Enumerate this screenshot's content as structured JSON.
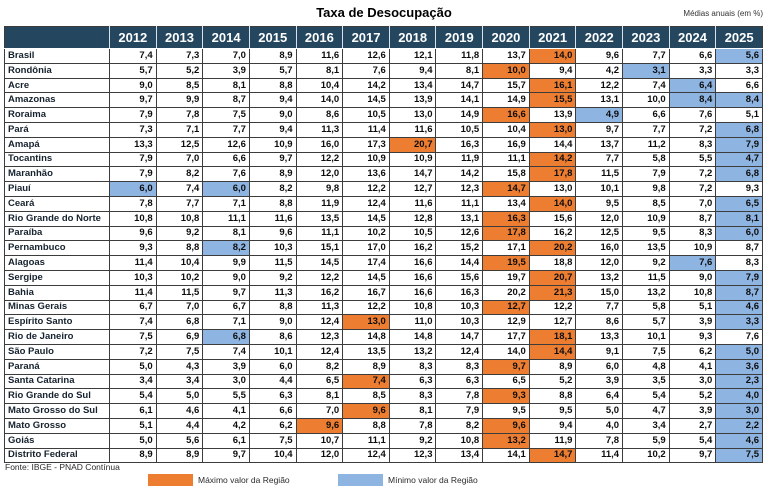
{
  "title": "Taxa de Desocupação",
  "subtitle": "Médias anuais (em %)",
  "source": "Fonte: IBGE - PNAD Contínua",
  "legend": {
    "max_label": "Máximo valor da Região",
    "min_label": "Mínimo valor da Região",
    "max_color": "#ED7D31",
    "min_color": "#8EB4E2"
  },
  "colors": {
    "header_bg": "#24465F",
    "header_text": "#FFFFFF",
    "max_fill": "#ED7D31",
    "min_fill": "#8EB4E2",
    "grid_line": "#3C3C3C"
  },
  "chart_data": {
    "type": "table",
    "title": "Taxa de Desocupação",
    "unit": "Médias anuais (em %)",
    "highlight_legend": {
      "orange": "Máximo valor da Região",
      "blue": "Mínimo valor da Região"
    },
    "years": [
      "2012",
      "2013",
      "2014",
      "2015",
      "2016",
      "2017",
      "2018",
      "2019",
      "2020",
      "2021",
      "2022",
      "2023",
      "2024",
      "2025"
    ],
    "rows": [
      {
        "name": "Brasil",
        "values": [
          "7,4",
          "7,3",
          "7,0",
          "8,9",
          "11,6",
          "12,6",
          "12,1",
          "11,8",
          "13,7",
          "14,0",
          "9,6",
          "7,7",
          "6,6",
          "5,6"
        ],
        "max": [
          9
        ],
        "min": [
          13
        ]
      },
      {
        "name": "Rondônia",
        "values": [
          "5,7",
          "5,2",
          "3,9",
          "5,7",
          "8,1",
          "7,6",
          "9,4",
          "8,1",
          "10,0",
          "9,4",
          "4,2",
          "3,1",
          "3,3",
          "3,3"
        ],
        "max": [
          8
        ],
        "min": [
          11
        ]
      },
      {
        "name": "Acre",
        "values": [
          "9,0",
          "8,5",
          "8,1",
          "8,8",
          "10,4",
          "14,2",
          "13,4",
          "14,7",
          "15,7",
          "16,1",
          "12,2",
          "7,4",
          "6,4",
          "6,6"
        ],
        "max": [
          9
        ],
        "min": [
          12
        ]
      },
      {
        "name": "Amazonas",
        "values": [
          "9,7",
          "9,9",
          "8,7",
          "9,4",
          "14,0",
          "14,5",
          "13,9",
          "14,1",
          "14,9",
          "15,5",
          "13,1",
          "10,0",
          "8,4",
          "8,4"
        ],
        "max": [
          9
        ],
        "min": [
          12,
          13
        ]
      },
      {
        "name": "Roraima",
        "values": [
          "7,9",
          "7,8",
          "7,5",
          "9,0",
          "8,6",
          "10,5",
          "13,0",
          "14,9",
          "16,6",
          "13,9",
          "4,9",
          "6,6",
          "7,6",
          "5,1"
        ],
        "max": [
          8
        ],
        "min": [
          10
        ]
      },
      {
        "name": "Pará",
        "values": [
          "7,3",
          "7,1",
          "7,7",
          "9,4",
          "11,3",
          "11,4",
          "11,6",
          "10,5",
          "10,4",
          "13,0",
          "9,7",
          "7,7",
          "7,2",
          "6,8"
        ],
        "max": [
          9
        ],
        "min": [
          13
        ]
      },
      {
        "name": "Amapá",
        "values": [
          "13,3",
          "12,5",
          "12,6",
          "10,9",
          "16,0",
          "17,3",
          "20,7",
          "16,3",
          "16,9",
          "14,4",
          "13,7",
          "11,2",
          "8,3",
          "7,9"
        ],
        "max": [
          6
        ],
        "min": [
          13
        ]
      },
      {
        "name": "Tocantins",
        "values": [
          "7,9",
          "7,0",
          "6,6",
          "9,7",
          "12,2",
          "10,9",
          "10,9",
          "11,9",
          "11,1",
          "14,2",
          "7,7",
          "5,8",
          "5,5",
          "4,7"
        ],
        "max": [
          9
        ],
        "min": [
          13
        ]
      },
      {
        "name": "Maranhão",
        "values": [
          "7,9",
          "8,2",
          "7,6",
          "8,9",
          "12,0",
          "13,6",
          "14,7",
          "14,2",
          "15,8",
          "17,8",
          "11,5",
          "7,9",
          "7,2",
          "6,8"
        ],
        "max": [
          9
        ],
        "min": [
          13
        ]
      },
      {
        "name": "Piauí",
        "values": [
          "6,0",
          "7,4",
          "6,0",
          "8,2",
          "9,8",
          "12,2",
          "12,7",
          "12,3",
          "14,7",
          "13,0",
          "10,1",
          "9,8",
          "7,2",
          "9,3"
        ],
        "max": [
          8
        ],
        "min": [
          0,
          2
        ]
      },
      {
        "name": "Ceará",
        "values": [
          "7,8",
          "7,7",
          "7,1",
          "8,8",
          "11,9",
          "12,4",
          "11,6",
          "11,1",
          "13,4",
          "14,0",
          "9,5",
          "8,5",
          "7,0",
          "6,5"
        ],
        "max": [
          9
        ],
        "min": [
          13
        ]
      },
      {
        "name": "Rio Grande do Norte",
        "values": [
          "10,8",
          "10,8",
          "11,1",
          "11,6",
          "13,5",
          "14,5",
          "12,8",
          "13,1",
          "16,3",
          "15,6",
          "12,0",
          "10,9",
          "8,7",
          "8,1"
        ],
        "max": [
          8
        ],
        "min": [
          13
        ]
      },
      {
        "name": "Paraíba",
        "values": [
          "9,6",
          "9,2",
          "8,1",
          "9,6",
          "11,1",
          "10,2",
          "10,5",
          "12,6",
          "17,8",
          "16,2",
          "12,5",
          "9,5",
          "8,3",
          "6,0"
        ],
        "max": [
          8
        ],
        "min": [
          13
        ]
      },
      {
        "name": "Pernambuco",
        "values": [
          "9,3",
          "8,8",
          "8,2",
          "10,3",
          "15,1",
          "17,0",
          "16,2",
          "15,2",
          "17,1",
          "20,2",
          "16,0",
          "13,5",
          "10,9",
          "8,7"
        ],
        "max": [
          9
        ],
        "min": [
          2
        ]
      },
      {
        "name": "Alagoas",
        "values": [
          "11,4",
          "10,4",
          "9,9",
          "11,5",
          "14,5",
          "17,4",
          "16,6",
          "14,4",
          "19,5",
          "18,8",
          "12,0",
          "9,2",
          "7,6",
          "8,3"
        ],
        "max": [
          8
        ],
        "min": [
          12
        ]
      },
      {
        "name": "Sergipe",
        "values": [
          "10,3",
          "10,2",
          "9,0",
          "9,2",
          "12,2",
          "14,5",
          "16,6",
          "15,6",
          "19,7",
          "20,7",
          "13,2",
          "11,5",
          "9,0",
          "7,9"
        ],
        "max": [
          9
        ],
        "min": [
          13
        ]
      },
      {
        "name": "Bahia",
        "values": [
          "11,4",
          "11,5",
          "9,7",
          "11,3",
          "16,2",
          "16,7",
          "16,6",
          "16,3",
          "20,2",
          "21,3",
          "15,0",
          "13,2",
          "10,8",
          "8,7"
        ],
        "max": [
          9
        ],
        "min": [
          13
        ]
      },
      {
        "name": "Minas Gerais",
        "values": [
          "6,7",
          "7,0",
          "6,7",
          "8,8",
          "11,3",
          "12,2",
          "10,8",
          "10,3",
          "12,7",
          "12,2",
          "7,7",
          "5,8",
          "5,1",
          "4,6"
        ],
        "max": [
          8
        ],
        "min": [
          13
        ]
      },
      {
        "name": "Espírito Santo",
        "values": [
          "7,4",
          "6,8",
          "7,1",
          "9,0",
          "12,4",
          "13,0",
          "11,0",
          "10,3",
          "12,9",
          "12,7",
          "8,6",
          "5,7",
          "3,9",
          "3,3"
        ],
        "max": [
          5
        ],
        "min": [
          13
        ]
      },
      {
        "name": "Rio de Janeiro",
        "values": [
          "7,5",
          "6,9",
          "6,8",
          "8,6",
          "12,3",
          "14,8",
          "14,8",
          "14,7",
          "17,7",
          "18,1",
          "13,3",
          "10,1",
          "9,3",
          "7,6"
        ],
        "max": [
          9
        ],
        "min": [
          2
        ]
      },
      {
        "name": "São Paulo",
        "values": [
          "7,2",
          "7,5",
          "7,4",
          "10,1",
          "12,4",
          "13,5",
          "13,2",
          "12,4",
          "14,0",
          "14,4",
          "9,1",
          "7,5",
          "6,2",
          "5,0"
        ],
        "max": [
          9
        ],
        "min": [
          13
        ]
      },
      {
        "name": "Paraná",
        "values": [
          "5,0",
          "4,3",
          "3,9",
          "6,0",
          "8,2",
          "8,9",
          "8,3",
          "8,3",
          "9,7",
          "8,9",
          "6,0",
          "4,8",
          "4,1",
          "3,6"
        ],
        "max": [
          8
        ],
        "min": [
          13
        ]
      },
      {
        "name": "Santa Catarina",
        "values": [
          "3,4",
          "3,4",
          "3,0",
          "4,4",
          "6,5",
          "7,4",
          "6,3",
          "6,3",
          "6,5",
          "5,2",
          "3,9",
          "3,5",
          "3,0",
          "2,3"
        ],
        "max": [
          5
        ],
        "min": [
          13
        ]
      },
      {
        "name": "Rio Grande do Sul",
        "values": [
          "5,4",
          "5,0",
          "5,5",
          "6,3",
          "8,1",
          "8,5",
          "8,3",
          "7,8",
          "9,3",
          "8,8",
          "6,4",
          "5,4",
          "5,2",
          "4,0"
        ],
        "max": [
          8
        ],
        "min": [
          13
        ]
      },
      {
        "name": "Mato Grosso do Sul",
        "values": [
          "6,1",
          "4,6",
          "4,1",
          "6,6",
          "7,0",
          "9,6",
          "8,1",
          "7,9",
          "9,5",
          "9,5",
          "5,0",
          "4,7",
          "3,9",
          "3,0"
        ],
        "max": [
          5
        ],
        "min": [
          13
        ]
      },
      {
        "name": "Mato Grosso",
        "values": [
          "5,1",
          "4,4",
          "4,2",
          "6,2",
          "9,6",
          "8,8",
          "7,8",
          "8,2",
          "9,6",
          "9,4",
          "4,0",
          "3,4",
          "2,7",
          "2,2"
        ],
        "max": [
          4,
          8
        ],
        "min": [
          13
        ]
      },
      {
        "name": "Goiás",
        "values": [
          "5,0",
          "5,6",
          "6,1",
          "7,5",
          "10,7",
          "11,1",
          "9,2",
          "10,8",
          "13,2",
          "11,9",
          "7,8",
          "5,9",
          "5,4",
          "4,6"
        ],
        "max": [
          8
        ],
        "min": [
          13
        ]
      },
      {
        "name": "Distrito Federal",
        "values": [
          "8,9",
          "8,9",
          "9,7",
          "10,4",
          "12,0",
          "12,4",
          "12,3",
          "13,4",
          "14,1",
          "14,7",
          "11,4",
          "10,2",
          "9,7",
          "7,5"
        ],
        "max": [
          9
        ],
        "min": [
          13
        ]
      }
    ]
  }
}
